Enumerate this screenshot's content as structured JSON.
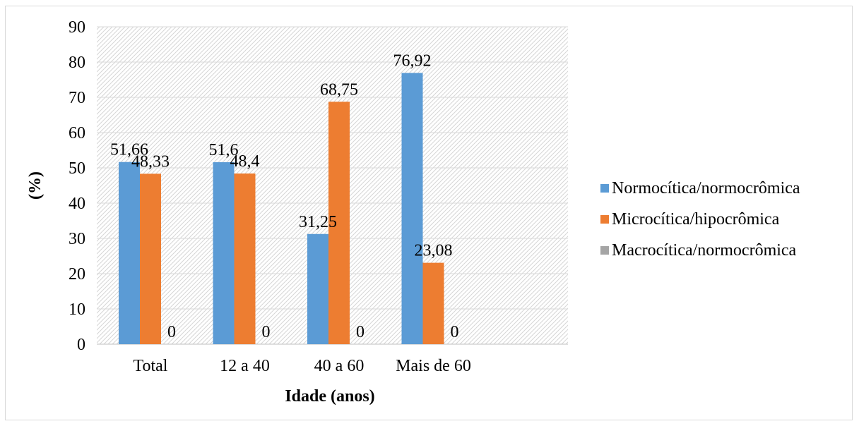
{
  "chart_data": {
    "type": "bar",
    "title": "",
    "xlabel": "Idade (anos)",
    "ylabel": "(%)",
    "ylim": [
      0,
      90
    ],
    "yticks": [
      "0",
      "10",
      "20",
      "30",
      "40",
      "50",
      "60",
      "70",
      "80",
      "90"
    ],
    "categories": [
      "Total",
      "12 a 40",
      "40 a 60",
      "Mais de 60"
    ],
    "series": [
      {
        "name": "Normocítica/normocrômica",
        "color": "#5B9BD5",
        "values": [
          51.66,
          51.6,
          31.25,
          76.92
        ],
        "labels": [
          "51,66",
          "51,6",
          "31,25",
          "76,92"
        ]
      },
      {
        "name": "Microcítica/hipocrômica",
        "color": "#ED7D31",
        "values": [
          48.33,
          48.4,
          68.75,
          23.08
        ],
        "labels": [
          "48,33",
          "48,4",
          "68,75",
          "23,08"
        ]
      },
      {
        "name": "Macrocítica/normocrômica",
        "color": "#A5A5A5",
        "values": [
          0,
          0,
          0,
          0
        ],
        "labels": [
          "0",
          "0",
          "0",
          "0"
        ]
      }
    ],
    "grid": true,
    "plot_background": "diagonal-hatch",
    "legend_position": "right"
  }
}
